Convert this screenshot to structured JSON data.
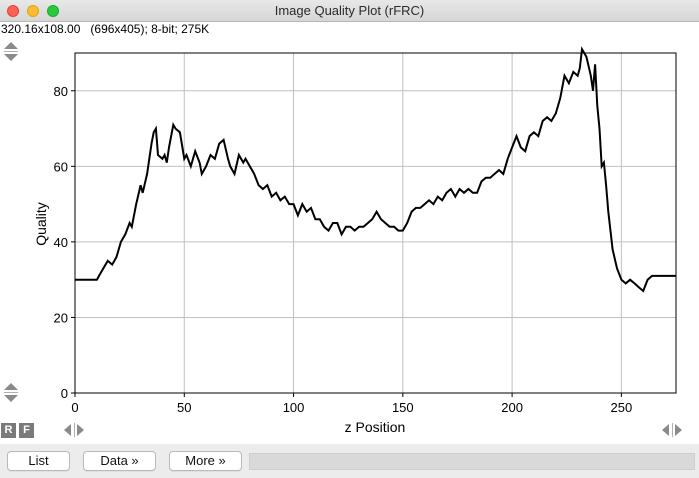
{
  "window": {
    "title": "Image Quality Plot (rFRC)"
  },
  "infobar": {
    "text": "320.16x108.00   (696x405); 8-bit; 275K"
  },
  "buttons": {
    "list": "List",
    "data": "Data »",
    "more": "More »",
    "r": "R",
    "f": "F"
  },
  "icons": {
    "zoom_top": "zoom-arrows-icon",
    "zoom_bottom": "zoom-arrows-icon",
    "pan_left": "pan-arrows-icon",
    "pan_right": "pan-arrows-icon"
  },
  "colors": {
    "line": "#000000",
    "grid": "#c0c0c0",
    "frame": "#000000"
  },
  "chart_data": {
    "type": "line",
    "xlabel": "z Position",
    "ylabel": "Quality",
    "xlim": [
      0,
      275
    ],
    "ylim": [
      0,
      90
    ],
    "xticks": [
      0,
      50,
      100,
      150,
      200,
      250
    ],
    "yticks": [
      0,
      20,
      40,
      60,
      80
    ],
    "grid": true,
    "series": [
      {
        "x": [
          0,
          10,
          11,
          13,
          15,
          17,
          19,
          21,
          23,
          25,
          26,
          28,
          30,
          31,
          33,
          35,
          36,
          37,
          38,
          40,
          41,
          42,
          43,
          45,
          46,
          48,
          50,
          51,
          53,
          55,
          57,
          58,
          60,
          62,
          64,
          66,
          68,
          70,
          71,
          73,
          75,
          77,
          78,
          80,
          82,
          84,
          86,
          88,
          90,
          92,
          94,
          96,
          98,
          100,
          102,
          104,
          106,
          108,
          110,
          112,
          114,
          116,
          118,
          120,
          122,
          124,
          126,
          128,
          130,
          132,
          134,
          136,
          138,
          140,
          142,
          144,
          146,
          148,
          150,
          152,
          154,
          156,
          158,
          160,
          162,
          164,
          166,
          168,
          170,
          172,
          174,
          176,
          178,
          180,
          182,
          184,
          186,
          188,
          190,
          192,
          194,
          196,
          198,
          200,
          202,
          204,
          206,
          208,
          210,
          212,
          214,
          216,
          218,
          220,
          222,
          224,
          226,
          228,
          230,
          231,
          232,
          234,
          236,
          237,
          238,
          239,
          240,
          241,
          242,
          243,
          244,
          246,
          248,
          250,
          252,
          254,
          256,
          258,
          260,
          262,
          264,
          266,
          268,
          270,
          272,
          275
        ],
        "y": [
          30,
          30,
          31,
          33,
          35,
          34,
          36,
          40,
          42,
          45,
          44,
          50,
          55,
          53,
          58,
          66,
          69,
          70,
          63,
          62,
          63,
          61,
          65,
          71,
          70,
          69,
          62,
          63,
          60,
          64,
          61,
          58,
          60,
          63,
          62,
          66,
          67,
          62,
          60,
          58,
          63,
          61,
          62,
          60,
          58,
          55,
          54,
          55,
          52,
          53,
          51,
          52,
          50,
          50,
          47,
          50,
          48,
          49,
          46,
          46,
          44,
          43,
          45,
          45,
          42,
          44,
          44,
          43,
          44,
          44,
          45,
          46,
          48,
          46,
          45,
          44,
          44,
          43,
          43,
          45,
          48,
          49,
          49,
          50,
          51,
          50,
          52,
          51,
          53,
          54,
          52,
          54,
          53,
          54,
          53,
          53,
          56,
          57,
          57,
          58,
          59,
          58,
          62,
          65,
          68,
          65,
          64,
          68,
          69,
          68,
          72,
          73,
          72,
          74,
          78,
          84,
          82,
          85,
          84,
          86,
          91,
          89,
          84,
          80,
          87,
          76,
          70,
          60,
          61,
          55,
          48,
          38,
          33,
          30,
          29,
          30,
          29,
          28,
          27,
          30,
          31,
          31,
          31,
          31,
          31,
          31
        ]
      }
    ]
  }
}
